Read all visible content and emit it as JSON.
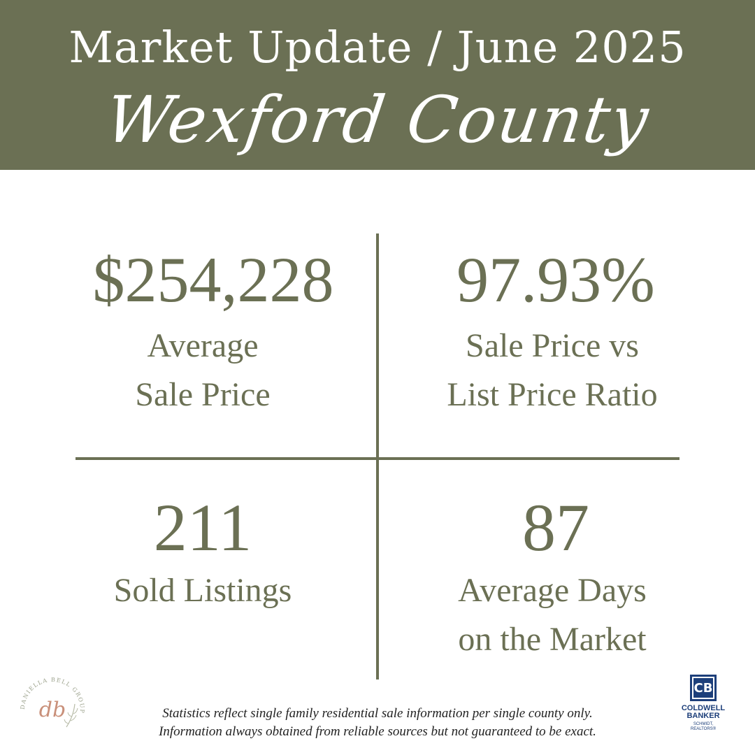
{
  "header": {
    "title": "Market Update / June 2025",
    "county": "Wexford County"
  },
  "stats": [
    {
      "value": "$254,228",
      "label_line1": "Average",
      "label_line2": "Sale Price"
    },
    {
      "value": "97.93%",
      "label_line1": "Sale Price vs",
      "label_line2": "List Price Ratio"
    },
    {
      "value": "211",
      "label_line1": "Sold Listings",
      "label_line2": ""
    },
    {
      "value": "87",
      "label_line1": "Average Days",
      "label_line2": "on the Market"
    }
  ],
  "disclaimer": {
    "line1": "Statistics reflect single family residential sale information per single county only.",
    "line2": "Information always obtained from reliable sources but not guaranteed to be exact."
  },
  "logo_left": {
    "initials": "db",
    "ring_text": "DANIELLA BELL GROUP"
  },
  "logo_right": {
    "mark": "CB",
    "line1": "COLDWELL",
    "line2": "BANKER",
    "line3": "SCHMIDT,",
    "line4": "REALTORS®"
  },
  "colors": {
    "olive": "#6b7054",
    "cb_blue": "#1d3f7a",
    "logo_rose": "#c9907a"
  }
}
